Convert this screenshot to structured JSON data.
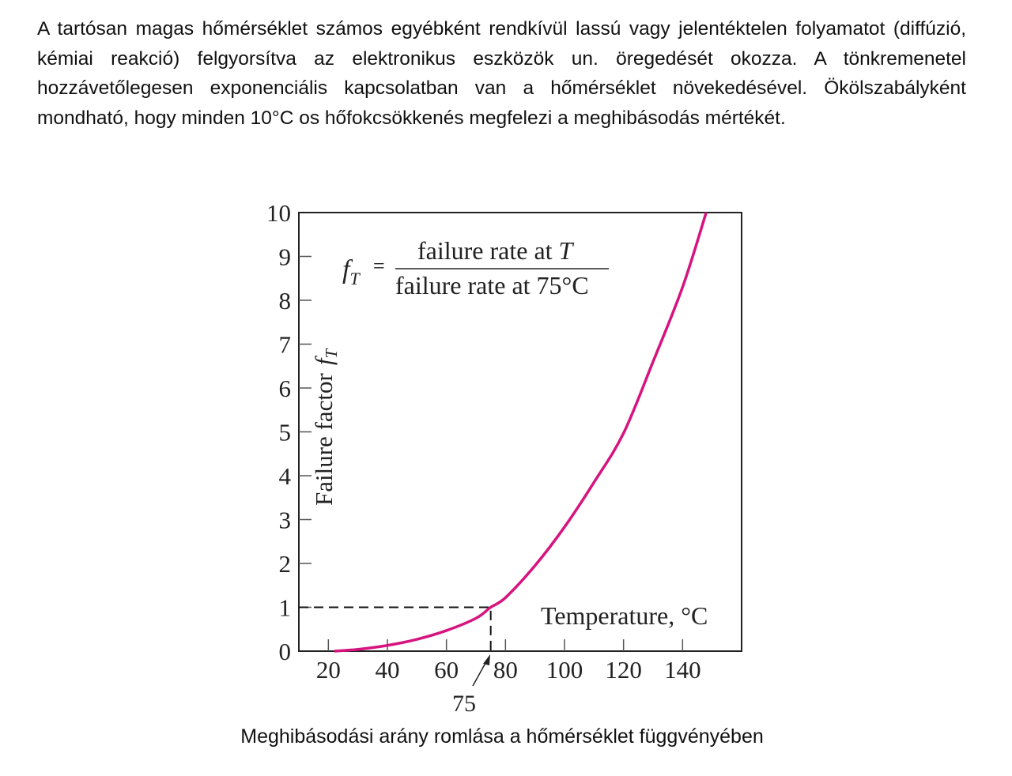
{
  "paragraph": "A tartósan magas hőmérséklet számos egyébként rendkívül lassú vagy jelentéktelen folyamatot (diffúzió, kémiai reakció) felgyorsítva az elektronikus eszközök un. öregedését okozza. A tönkremenetel hozzávetőlegesen exponenciális kapcsolatban van a hőmérséklet növekedésével. Ökölszabályként mondható, hogy minden 10°C os hőfokcsökkenés megfelezi a meghibásodás mértékét.",
  "caption": "Meghibásodási arány romlása a hőmérséklet függvényében",
  "chart_data": {
    "type": "line",
    "title": "",
    "xlabel": "Temperature, °C",
    "ylabel": "Failure factor",
    "ylabel_symbol": "f",
    "ylabel_subscript": "T",
    "xlim": [
      10,
      160
    ],
    "ylim": [
      0,
      10
    ],
    "xticks": [
      20,
      40,
      60,
      80,
      100,
      120,
      140
    ],
    "yticks": [
      0,
      1,
      2,
      3,
      4,
      5,
      6,
      7,
      8,
      9,
      10
    ],
    "grid": false,
    "series": [
      {
        "name": "failure factor",
        "color": "#d6147f",
        "x": [
          22,
          30,
          40,
          50,
          60,
          70,
          75,
          80,
          90,
          100,
          110,
          120,
          130,
          140,
          148
        ],
        "y": [
          0,
          0.04,
          0.13,
          0.27,
          0.47,
          0.75,
          1,
          1.22,
          1.95,
          2.83,
          3.85,
          4.97,
          6.6,
          8.3,
          10
        ]
      }
    ],
    "reference": {
      "x": 75,
      "y": 1,
      "label": "75"
    },
    "formula": {
      "lhs": "f",
      "lhs_sub": "T",
      "equals": "=",
      "numerator": "failure rate at",
      "numerator_var": "T",
      "denominator": "failure rate at 75°C"
    }
  }
}
